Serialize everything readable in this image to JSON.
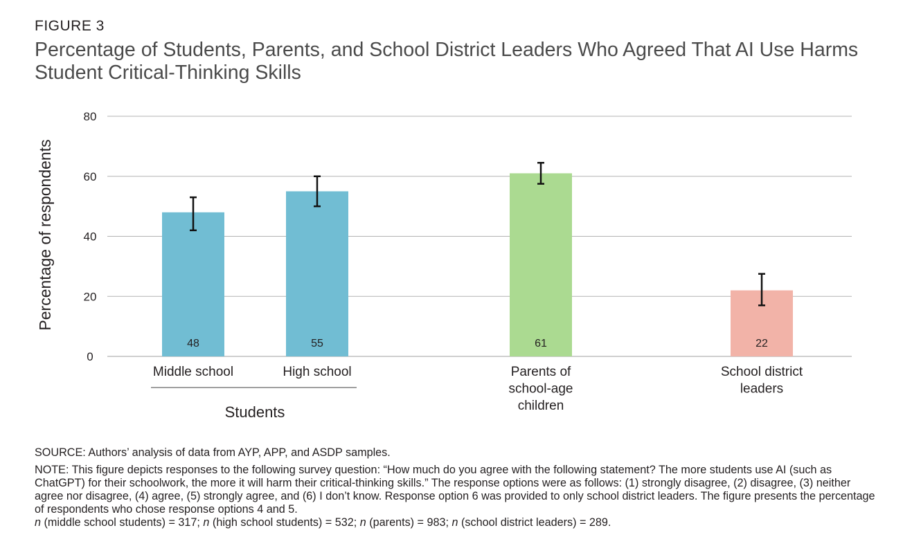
{
  "figure_label": "FIGURE 3",
  "title": "Percentage of Students, Parents, and School District Leaders Who Agreed That AI Use Harms Student Critical-Thinking Skills",
  "chart_data": {
    "type": "bar",
    "ylabel": "Percentage of respondents",
    "ylim": [
      0,
      80
    ],
    "yticks": [
      0,
      20,
      40,
      60,
      80
    ],
    "grid": true,
    "categories": [
      {
        "label_lines": [
          "Middle school"
        ],
        "value": 48,
        "err_low": 42,
        "err_high": 53,
        "color": "#71bdd3"
      },
      {
        "label_lines": [
          "High school"
        ],
        "value": 55,
        "err_low": 50,
        "err_high": 60,
        "color": "#71bdd3"
      },
      {
        "label_lines": [
          "Parents of",
          "school-age",
          "children"
        ],
        "value": 61,
        "err_low": 57.5,
        "err_high": 64.5,
        "color": "#abda91"
      },
      {
        "label_lines": [
          "School district",
          "leaders"
        ],
        "value": 22,
        "err_low": 17,
        "err_high": 27.5,
        "color": "#f2b3a8"
      }
    ],
    "group_label": "Students"
  },
  "notes": {
    "source": "SOURCE: Authors’ analysis of data from AYP, APP, and ASDP samples.",
    "note": "NOTE: This figure depicts responses to the following survey question: “How much do you agree with the following statement? The more students use AI (such as ChatGPT) for their schoolwork, the more it will harm their critical-thinking skills.” The response options were as follows: (1) strongly disagree, (2) disagree, (3) neither agree nor disagree, (4) agree, (5) strongly agree, and (6) I don’t know. Response option 6 was provided to only school district leaders. The figure presents the percentage of respondents who chose response options 4 and 5.",
    "n_items": [
      {
        "n": "n",
        "rest": " (middle school students) = 317; "
      },
      {
        "n": "n",
        "rest": " (high school students) = 532;  "
      },
      {
        "n": "n",
        "rest": " (parents) = 983; "
      },
      {
        "n": "n",
        "rest": " (school district leaders) = 289."
      }
    ]
  }
}
